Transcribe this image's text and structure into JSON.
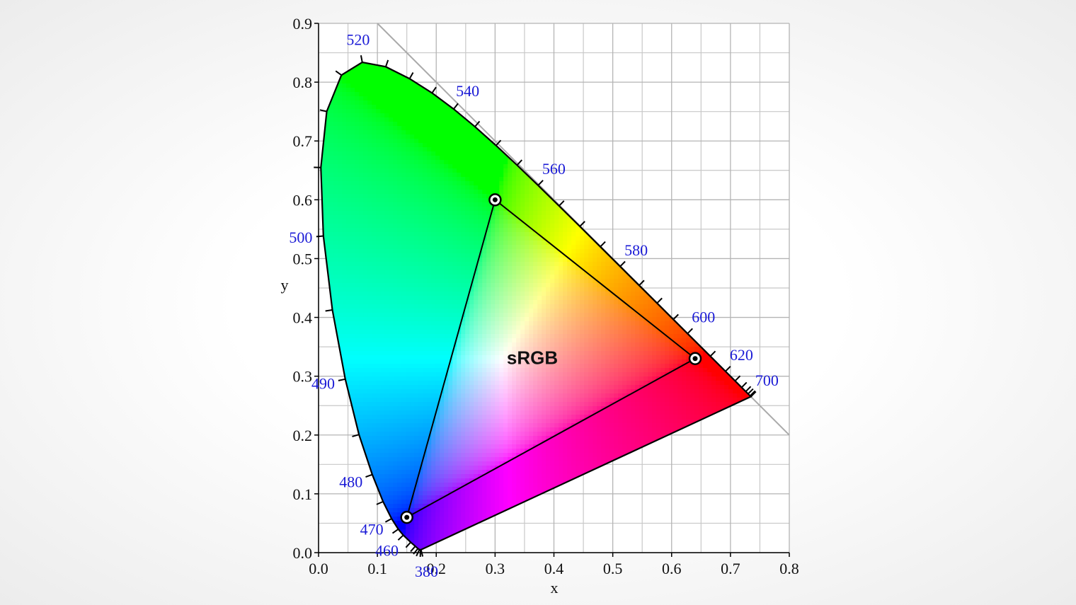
{
  "chart_data": {
    "type": "chromaticity",
    "xlabel": "x",
    "ylabel": "y",
    "xlim": [
      0,
      0.8
    ],
    "ylim": [
      0,
      0.9
    ],
    "xticks": [
      {
        "value": 0,
        "label": "0.0"
      },
      0.1,
      0.2,
      0.3,
      0.4,
      0.5,
      0.6,
      0.7,
      0.8
    ],
    "yticks": [
      {
        "value": 0,
        "label": "0.0"
      },
      0.1,
      0.2,
      0.3,
      0.4,
      0.5,
      0.6,
      0.7,
      0.8,
      0.9
    ],
    "grid": true,
    "minor_grid": true,
    "locus": {
      "color": "#000000",
      "label_color": "#1a1ad6",
      "wavelengths": [
        380,
        null,
        null,
        null,
        null,
        null,
        460,
        null,
        470,
        null,
        480,
        null,
        490,
        null,
        500,
        null,
        null,
        null,
        520,
        null,
        null,
        null,
        540,
        null,
        null,
        null,
        560,
        null,
        null,
        null,
        580,
        null,
        null,
        null,
        600,
        null,
        620,
        null,
        null,
        null,
        null,
        null,
        700
      ],
      "x": [
        0.1741,
        0.1733,
        0.1714,
        0.1689,
        0.1644,
        0.1566,
        0.144,
        0.1355,
        0.1241,
        0.1096,
        0.0913,
        0.0687,
        0.0454,
        0.0235,
        0.0082,
        0.0039,
        0.0139,
        0.0389,
        0.0743,
        0.1142,
        0.1547,
        0.1929,
        0.2296,
        0.2658,
        0.3016,
        0.3373,
        0.3731,
        0.4087,
        0.4441,
        0.4788,
        0.5125,
        0.5448,
        0.5752,
        0.6029,
        0.627,
        0.6658,
        0.6915,
        0.7079,
        0.719,
        0.726,
        0.73,
        0.7334,
        0.7347
      ],
      "y": [
        0.005,
        0.0048,
        0.0051,
        0.0069,
        0.0109,
        0.0177,
        0.0297,
        0.0399,
        0.0578,
        0.0868,
        0.1327,
        0.2007,
        0.295,
        0.4127,
        0.5384,
        0.6548,
        0.7502,
        0.812,
        0.8338,
        0.8262,
        0.8059,
        0.7816,
        0.7543,
        0.7243,
        0.6923,
        0.6589,
        0.6245,
        0.5896,
        0.5547,
        0.5202,
        0.4866,
        0.4544,
        0.4242,
        0.3965,
        0.3725,
        0.334,
        0.3083,
        0.292,
        0.2809,
        0.274,
        0.27,
        0.2666,
        0.2653
      ]
    },
    "reference_line": {
      "x": [
        0.1,
        0.8
      ],
      "y": [
        0.9,
        0.2
      ],
      "color": "#aaaaaa"
    },
    "series": [
      {
        "name": "sRGB",
        "color": "#000000",
        "x": [
          0.64,
          0.3,
          0.15
        ],
        "y": [
          0.33,
          0.6,
          0.06
        ]
      }
    ]
  }
}
